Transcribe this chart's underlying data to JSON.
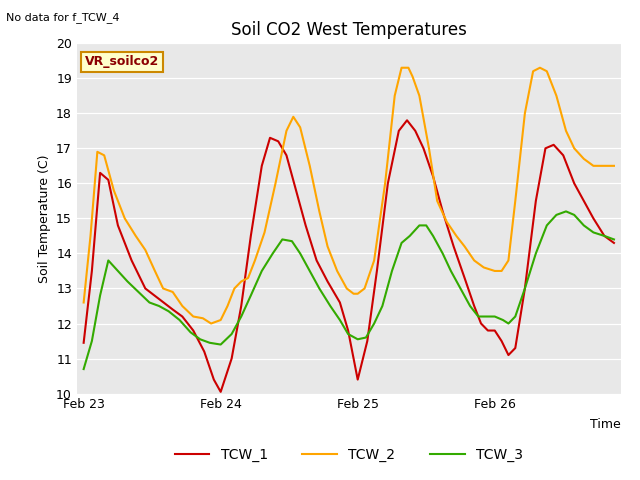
{
  "title": "Soil CO2 West Temperatures",
  "no_data_text": "No data for f_TCW_4",
  "ylabel": "Soil Temperature (C)",
  "xlabel": "Time",
  "ylim": [
    10.0,
    20.0
  ],
  "yticks": [
    10.0,
    11.0,
    12.0,
    13.0,
    14.0,
    15.0,
    16.0,
    17.0,
    18.0,
    19.0,
    20.0
  ],
  "vr_label": "VR_soilco2",
  "bg_color": "#e8e8e8",
  "fig_bg": "#ffffff",
  "lines": {
    "TCW_1": {
      "color": "#cc0000",
      "points": [
        [
          0.0,
          11.45
        ],
        [
          0.06,
          13.5
        ],
        [
          0.12,
          16.3
        ],
        [
          0.18,
          16.1
        ],
        [
          0.25,
          14.8
        ],
        [
          0.35,
          13.8
        ],
        [
          0.45,
          13.0
        ],
        [
          0.55,
          12.7
        ],
        [
          0.65,
          12.4
        ],
        [
          0.72,
          12.2
        ],
        [
          0.8,
          11.8
        ],
        [
          0.88,
          11.2
        ],
        [
          0.95,
          10.4
        ],
        [
          1.0,
          10.05
        ],
        [
          1.08,
          11.0
        ],
        [
          1.15,
          12.5
        ],
        [
          1.22,
          14.5
        ],
        [
          1.3,
          16.5
        ],
        [
          1.36,
          17.3
        ],
        [
          1.42,
          17.2
        ],
        [
          1.48,
          16.8
        ],
        [
          1.55,
          15.8
        ],
        [
          1.62,
          14.8
        ],
        [
          1.7,
          13.8
        ],
        [
          1.78,
          13.2
        ],
        [
          1.87,
          12.6
        ],
        [
          1.93,
          11.8
        ],
        [
          2.0,
          10.4
        ],
        [
          2.07,
          11.5
        ],
        [
          2.14,
          13.5
        ],
        [
          2.22,
          16.0
        ],
        [
          2.3,
          17.5
        ],
        [
          2.36,
          17.8
        ],
        [
          2.42,
          17.5
        ],
        [
          2.48,
          17.0
        ],
        [
          2.55,
          16.2
        ],
        [
          2.62,
          15.2
        ],
        [
          2.7,
          14.2
        ],
        [
          2.78,
          13.3
        ],
        [
          2.85,
          12.5
        ],
        [
          2.9,
          12.0
        ],
        [
          2.95,
          11.8
        ],
        [
          3.0,
          11.8
        ],
        [
          3.05,
          11.5
        ],
        [
          3.1,
          11.1
        ],
        [
          3.15,
          11.3
        ],
        [
          3.22,
          13.0
        ],
        [
          3.3,
          15.5
        ],
        [
          3.37,
          17.0
        ],
        [
          3.43,
          17.1
        ],
        [
          3.5,
          16.8
        ],
        [
          3.58,
          16.0
        ],
        [
          3.65,
          15.5
        ],
        [
          3.72,
          15.0
        ],
        [
          3.8,
          14.5
        ],
        [
          3.87,
          14.3
        ]
      ]
    },
    "TCW_2": {
      "color": "#ffa500",
      "points": [
        [
          0.0,
          12.6
        ],
        [
          0.05,
          14.5
        ],
        [
          0.1,
          16.9
        ],
        [
          0.15,
          16.8
        ],
        [
          0.22,
          15.8
        ],
        [
          0.3,
          15.0
        ],
        [
          0.38,
          14.5
        ],
        [
          0.45,
          14.1
        ],
        [
          0.52,
          13.5
        ],
        [
          0.58,
          13.0
        ],
        [
          0.65,
          12.9
        ],
        [
          0.72,
          12.5
        ],
        [
          0.8,
          12.2
        ],
        [
          0.87,
          12.15
        ],
        [
          0.93,
          12.0
        ],
        [
          1.0,
          12.1
        ],
        [
          1.05,
          12.5
        ],
        [
          1.1,
          13.0
        ],
        [
          1.15,
          13.2
        ],
        [
          1.2,
          13.3
        ],
        [
          1.25,
          13.8
        ],
        [
          1.32,
          14.6
        ],
        [
          1.4,
          16.0
        ],
        [
          1.48,
          17.5
        ],
        [
          1.53,
          17.9
        ],
        [
          1.58,
          17.6
        ],
        [
          1.65,
          16.5
        ],
        [
          1.72,
          15.2
        ],
        [
          1.78,
          14.2
        ],
        [
          1.85,
          13.5
        ],
        [
          1.92,
          13.0
        ],
        [
          1.97,
          12.85
        ],
        [
          2.0,
          12.85
        ],
        [
          2.05,
          13.0
        ],
        [
          2.12,
          13.8
        ],
        [
          2.2,
          16.0
        ],
        [
          2.27,
          18.5
        ],
        [
          2.32,
          19.3
        ],
        [
          2.37,
          19.3
        ],
        [
          2.4,
          19.05
        ],
        [
          2.45,
          18.5
        ],
        [
          2.52,
          17.0
        ],
        [
          2.58,
          15.5
        ],
        [
          2.65,
          14.9
        ],
        [
          2.72,
          14.5
        ],
        [
          2.78,
          14.2
        ],
        [
          2.85,
          13.8
        ],
        [
          2.92,
          13.6
        ],
        [
          3.0,
          13.5
        ],
        [
          3.05,
          13.5
        ],
        [
          3.1,
          13.8
        ],
        [
          3.15,
          15.5
        ],
        [
          3.22,
          18.0
        ],
        [
          3.28,
          19.2
        ],
        [
          3.33,
          19.3
        ],
        [
          3.38,
          19.2
        ],
        [
          3.45,
          18.5
        ],
        [
          3.52,
          17.5
        ],
        [
          3.58,
          17.0
        ],
        [
          3.65,
          16.7
        ],
        [
          3.72,
          16.5
        ],
        [
          3.8,
          16.5
        ],
        [
          3.87,
          16.5
        ]
      ]
    },
    "TCW_3": {
      "color": "#33aa00",
      "points": [
        [
          0.0,
          10.7
        ],
        [
          0.06,
          11.5
        ],
        [
          0.12,
          12.8
        ],
        [
          0.18,
          13.8
        ],
        [
          0.25,
          13.5
        ],
        [
          0.32,
          13.2
        ],
        [
          0.4,
          12.9
        ],
        [
          0.48,
          12.6
        ],
        [
          0.55,
          12.5
        ],
        [
          0.62,
          12.35
        ],
        [
          0.7,
          12.1
        ],
        [
          0.78,
          11.75
        ],
        [
          0.85,
          11.55
        ],
        [
          0.92,
          11.45
        ],
        [
          1.0,
          11.4
        ],
        [
          1.08,
          11.7
        ],
        [
          1.15,
          12.2
        ],
        [
          1.22,
          12.8
        ],
        [
          1.3,
          13.5
        ],
        [
          1.38,
          14.0
        ],
        [
          1.45,
          14.4
        ],
        [
          1.52,
          14.35
        ],
        [
          1.58,
          14.0
        ],
        [
          1.65,
          13.5
        ],
        [
          1.72,
          13.0
        ],
        [
          1.8,
          12.5
        ],
        [
          1.87,
          12.1
        ],
        [
          1.93,
          11.7
        ],
        [
          2.0,
          11.55
        ],
        [
          2.06,
          11.6
        ],
        [
          2.12,
          12.0
        ],
        [
          2.18,
          12.5
        ],
        [
          2.25,
          13.5
        ],
        [
          2.32,
          14.3
        ],
        [
          2.38,
          14.5
        ],
        [
          2.45,
          14.8
        ],
        [
          2.5,
          14.8
        ],
        [
          2.55,
          14.5
        ],
        [
          2.62,
          14.0
        ],
        [
          2.68,
          13.5
        ],
        [
          2.75,
          13.0
        ],
        [
          2.82,
          12.5
        ],
        [
          2.88,
          12.2
        ],
        [
          2.95,
          12.2
        ],
        [
          3.0,
          12.2
        ],
        [
          3.06,
          12.1
        ],
        [
          3.1,
          12.0
        ],
        [
          3.15,
          12.2
        ],
        [
          3.22,
          13.0
        ],
        [
          3.3,
          14.0
        ],
        [
          3.38,
          14.8
        ],
        [
          3.45,
          15.1
        ],
        [
          3.52,
          15.2
        ],
        [
          3.58,
          15.1
        ],
        [
          3.65,
          14.8
        ],
        [
          3.72,
          14.6
        ],
        [
          3.8,
          14.5
        ],
        [
          3.87,
          14.4
        ]
      ]
    }
  }
}
